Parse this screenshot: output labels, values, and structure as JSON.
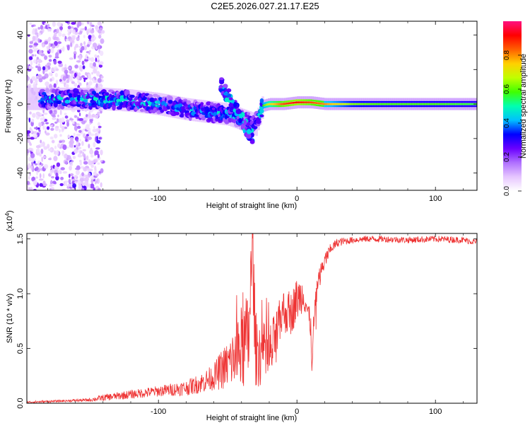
{
  "title": "C2E5.2026.027.21.17.E25",
  "chart_data": [
    {
      "type": "heatmap",
      "name": "spectrogram",
      "xlabel": "Height of straight line (km)",
      "ylabel": "Frequency (Hz)",
      "xlim": [
        -195,
        130
      ],
      "ylim": [
        -50,
        48
      ],
      "x_ticks": [
        -100,
        0,
        100
      ],
      "x_tick_labels": [
        "-100",
        "0",
        "100"
      ],
      "y_ticks": [
        -40,
        -20,
        0,
        20,
        40
      ],
      "y_tick_labels": [
        "-40",
        "-20",
        "0",
        "20",
        "40"
      ],
      "colorbar": {
        "label": "Normalized spectral amplitude",
        "range": [
          0,
          1
        ],
        "ticks": [
          0.0,
          0.2,
          0.4,
          0.6,
          0.8
        ],
        "tick_labels": [
          "0.0",
          "0.2",
          "0.4",
          "0.6",
          "0.8"
        ],
        "colors": [
          "#ffffff",
          "#e6c6ff",
          "#b070ff",
          "#6a00ff",
          "#0000ff",
          "#00c0ff",
          "#00ffb0",
          "#40ff00",
          "#c0ff00",
          "#ffd000",
          "#ff6000",
          "#ff0000",
          "#ff1080"
        ]
      },
      "ridge": {
        "x": [
          -180,
          -160,
          -140,
          -120,
          -100,
          -80,
          -60,
          -50,
          -40,
          -30,
          -25,
          -20,
          -10,
          0,
          10,
          20,
          40,
          60,
          80,
          100,
          130
        ],
        "freq": [
          3,
          3,
          3,
          2,
          0,
          -3,
          -5,
          -6,
          -9,
          -12,
          -1,
          0,
          0,
          1,
          1,
          0,
          0,
          0,
          0,
          0,
          0
        ],
        "amplitude": [
          0.42,
          0.44,
          0.45,
          0.45,
          0.42,
          0.4,
          0.38,
          0.42,
          0.38,
          0.3,
          0.55,
          0.7,
          0.85,
          0.9,
          0.85,
          0.8,
          0.62,
          0.58,
          0.58,
          0.58,
          0.55
        ]
      },
      "high_frequency_excursion": {
        "x": [
          -55,
          -32
        ],
        "freq": [
          12,
          -20
        ]
      },
      "scatter_region": {
        "x": [
          -195,
          -140
        ],
        "freq": [
          -50,
          48
        ]
      }
    },
    {
      "type": "line",
      "name": "snr",
      "color": "#ee3333",
      "xlabel": "Height of straight line (km)",
      "ylabel": "SNR (10 * v/v)",
      "y_multiplier": "(x10",
      "y_multiplier_exp": "4",
      "y_multiplier_close": ")",
      "xlim": [
        -195,
        130
      ],
      "ylim": [
        0.0,
        1.55
      ],
      "x_ticks": [
        -100,
        0,
        100
      ],
      "x_tick_labels": [
        "-100",
        "0",
        "100"
      ],
      "y_ticks": [
        0.0,
        0.5,
        1.0,
        1.5
      ],
      "y_tick_labels": [
        "0.0",
        "0.5",
        "1.0",
        "1.5"
      ],
      "x": [
        -195,
        -170,
        -150,
        -140,
        -120,
        -100,
        -80,
        -70,
        -60,
        -55,
        -50,
        -45,
        -40,
        -35,
        -32,
        -30,
        -25,
        -20,
        -15,
        -10,
        -5,
        0,
        5,
        10,
        11,
        12,
        15,
        20,
        25,
        30,
        40,
        50,
        60,
        80,
        100,
        120,
        130
      ],
      "y": [
        0.01,
        0.02,
        0.03,
        0.05,
        0.08,
        0.11,
        0.14,
        0.18,
        0.24,
        0.3,
        0.35,
        0.42,
        0.5,
        0.58,
        1.45,
        0.5,
        0.45,
        0.42,
        0.6,
        0.85,
        0.8,
        0.95,
        1.0,
        0.7,
        0.28,
        0.72,
        1.1,
        1.3,
        1.42,
        1.47,
        1.49,
        1.5,
        1.5,
        1.49,
        1.5,
        1.49,
        1.47
      ],
      "noise_amplitude": [
        0.01,
        0.01,
        0.015,
        0.03,
        0.04,
        0.05,
        0.07,
        0.09,
        0.12,
        0.18,
        0.22,
        0.3,
        0.4,
        0.45,
        0.45,
        0.35,
        0.3,
        0.3,
        0.25,
        0.2,
        0.2,
        0.2,
        0.15,
        0.12,
        0.1,
        0.12,
        0.1,
        0.08,
        0.05,
        0.04,
        0.03,
        0.03,
        0.03,
        0.03,
        0.03,
        0.03,
        0.03
      ]
    }
  ]
}
